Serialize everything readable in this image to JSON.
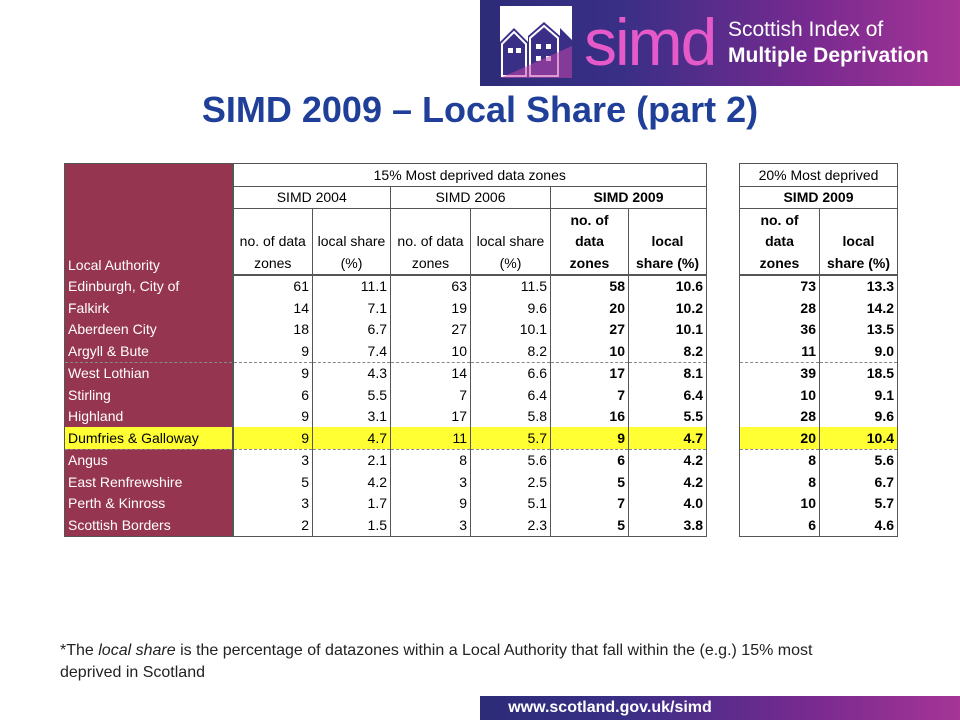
{
  "banner": {
    "brand_word": "simd",
    "line1": "Scottish Index of",
    "line2": "Multiple Deprivation"
  },
  "title": "SIMD 2009 – Local Share (part 2)",
  "table": {
    "header_15": "15% Most deprived data zones",
    "header_20": "20% Most deprived",
    "simd2004": "SIMD 2004",
    "simd2006": "SIMD 2006",
    "simd2009": "SIMD 2009",
    "simd2009b": "SIMD 2009",
    "local_authority": "Local Authority",
    "col_zones": "no. of data zones",
    "col_share": "local share (%)",
    "col_zones_2009_a": "no. of",
    "col_zones_2009_b": "data",
    "col_zones_2009_c": "zones",
    "col_share_2009_a": "local",
    "col_share_2009_b": "share (%)",
    "rows": [
      {
        "name": "Edinburgh, City of",
        "z04": "61",
        "s04": "11.1",
        "z06": "63",
        "s06": "11.5",
        "z09": "58",
        "s09": "10.6",
        "z20": "73",
        "s20": "13.3"
      },
      {
        "name": "Falkirk",
        "z04": "14",
        "s04": "7.1",
        "z06": "19",
        "s06": "9.6",
        "z09": "20",
        "s09": "10.2",
        "z20": "28",
        "s20": "14.2"
      },
      {
        "name": "Aberdeen City",
        "z04": "18",
        "s04": "6.7",
        "z06": "27",
        "s06": "10.1",
        "z09": "27",
        "s09": "10.1",
        "z20": "36",
        "s20": "13.5"
      },
      {
        "name": "Argyll & Bute",
        "z04": "9",
        "s04": "7.4",
        "z06": "10",
        "s06": "8.2",
        "z09": "10",
        "s09": "8.2",
        "z20": "11",
        "s20": "9.0"
      },
      {
        "name": "West Lothian",
        "z04": "9",
        "s04": "4.3",
        "z06": "14",
        "s06": "6.6",
        "z09": "17",
        "s09": "8.1",
        "z20": "39",
        "s20": "18.5"
      },
      {
        "name": "Stirling",
        "z04": "6",
        "s04": "5.5",
        "z06": "7",
        "s06": "6.4",
        "z09": "7",
        "s09": "6.4",
        "z20": "10",
        "s20": "9.1"
      },
      {
        "name": "Highland",
        "z04": "9",
        "s04": "3.1",
        "z06": "17",
        "s06": "5.8",
        "z09": "16",
        "s09": "5.5",
        "z20": "28",
        "s20": "9.6"
      },
      {
        "name": "Dumfries & Galloway",
        "z04": "9",
        "s04": "4.7",
        "z06": "11",
        "s06": "5.7",
        "z09": "9",
        "s09": "4.7",
        "z20": "20",
        "s20": "10.4"
      },
      {
        "name": "Angus",
        "z04": "3",
        "s04": "2.1",
        "z06": "8",
        "s06": "5.6",
        "z09": "6",
        "s09": "4.2",
        "z20": "8",
        "s20": "5.6"
      },
      {
        "name": "East Renfrewshire",
        "z04": "5",
        "s04": "4.2",
        "z06": "3",
        "s06": "2.5",
        "z09": "5",
        "s09": "4.2",
        "z20": "8",
        "s20": "6.7"
      },
      {
        "name": "Perth & Kinross",
        "z04": "3",
        "s04": "1.7",
        "z06": "9",
        "s06": "5.1",
        "z09": "7",
        "s09": "4.0",
        "z20": "10",
        "s20": "5.7"
      },
      {
        "name": "Scottish Borders",
        "z04": "2",
        "s04": "1.5",
        "z06": "3",
        "s06": "2.3",
        "z09": "5",
        "s09": "3.8",
        "z20": "6",
        "s20": "4.6"
      }
    ]
  },
  "footnote": {
    "pre": "*The ",
    "italic": "local share",
    "post": " is the percentage of datazones within a Local Authority that fall within the (e.g.) 15% most deprived in Scotland"
  },
  "url": "www.scotland.gov.uk/simd",
  "colors": {
    "title": "#1f3f99",
    "la_column": "#96354f",
    "highlight": "#ffff33",
    "brand_pink": "#e659c8",
    "banner_start": "#2c2c78",
    "banner_end": "#a53596"
  },
  "icons": {
    "logo": "house-rooftops-logo"
  }
}
